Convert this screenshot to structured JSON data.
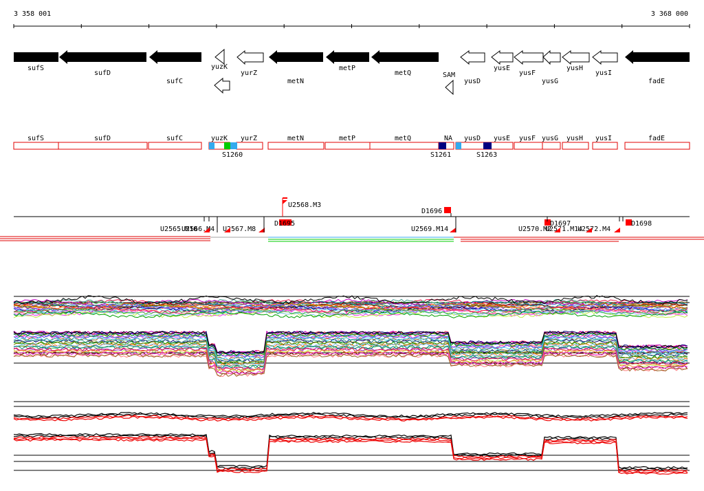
{
  "coord_start": "3 358 001",
  "coord_end": "3 368 000",
  "genes": [
    {
      "label": "sufS",
      "style": "filled"
    },
    {
      "label": "sufD",
      "style": "filled"
    },
    {
      "label": "sufC",
      "style": "filled"
    },
    {
      "label": "yuzK",
      "style": "outline"
    },
    {
      "label": "yurZ",
      "style": "outline"
    },
    {
      "label": "metN",
      "style": "filled"
    },
    {
      "label": "metP",
      "style": "filled"
    },
    {
      "label": "metQ",
      "style": "filled"
    },
    {
      "label": "SAM",
      "style": "outline"
    },
    {
      "label": "yusD",
      "style": "outline"
    },
    {
      "label": "yusE",
      "style": "outline"
    },
    {
      "label": "yusF",
      "style": "outline"
    },
    {
      "label": "yusG",
      "style": "outline"
    },
    {
      "label": "yusH",
      "style": "outline"
    },
    {
      "label": "yusI",
      "style": "outline"
    },
    {
      "label": "fadE",
      "style": "filled"
    }
  ],
  "boxes": [
    "sufS",
    "sufD",
    "sufC",
    "yuzK",
    "yurZ",
    "metN",
    "metP",
    "metQ",
    "NA",
    "yusD",
    "yusE",
    "yusF",
    "yusG",
    "yusH",
    "yusI",
    "fadE"
  ],
  "box_markers": [
    "S1260",
    "S1261",
    "S1263"
  ],
  "feature_labels": [
    "U2568.M3",
    "D1696",
    "U2565.M10",
    "U2566.M4",
    "U2567.M8",
    "D1695",
    "U2569.M14",
    "D1697",
    "U2570.M2",
    "U2571.M14",
    "U2572.M4",
    "D1698"
  ],
  "colors": {
    "gene_fill": "#000000",
    "box_border": "#e00000",
    "marker_light_blue": "#33aaee",
    "marker_green": "#00cc00",
    "marker_navy": "#000080",
    "feature_red": "#ff0000",
    "profile_red": "#ee0000"
  }
}
